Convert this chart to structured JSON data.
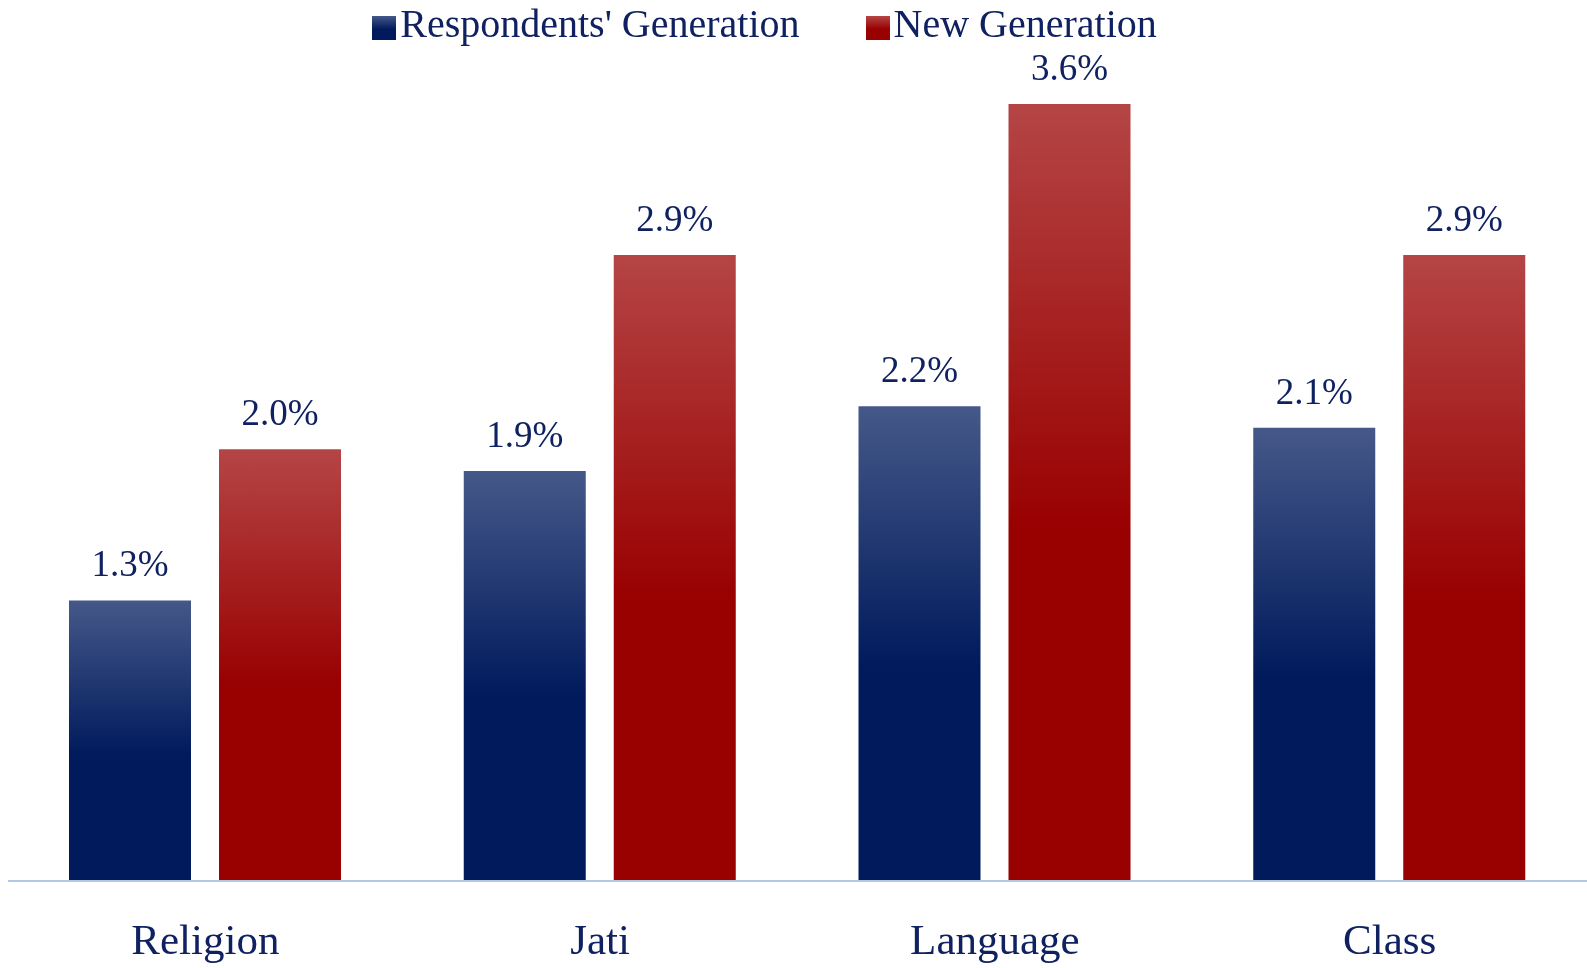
{
  "chart_data": {
    "type": "bar",
    "categories": [
      "Religion",
      "Jati",
      "Language",
      "Class"
    ],
    "series": [
      {
        "name": "Respondents' Generation",
        "color": "#001a5c",
        "values": [
          1.3,
          1.9,
          2.2,
          2.1
        ],
        "value_labels": [
          "1.3%",
          "1.9%",
          "2.2%",
          "2.1%"
        ]
      },
      {
        "name": "New Generation",
        "color": "#990000",
        "values": [
          2.0,
          2.9,
          3.6,
          2.9
        ],
        "value_labels": [
          "2.0%",
          "2.9%",
          "3.6%",
          "2.9%"
        ]
      }
    ],
    "legend": "top"
  }
}
